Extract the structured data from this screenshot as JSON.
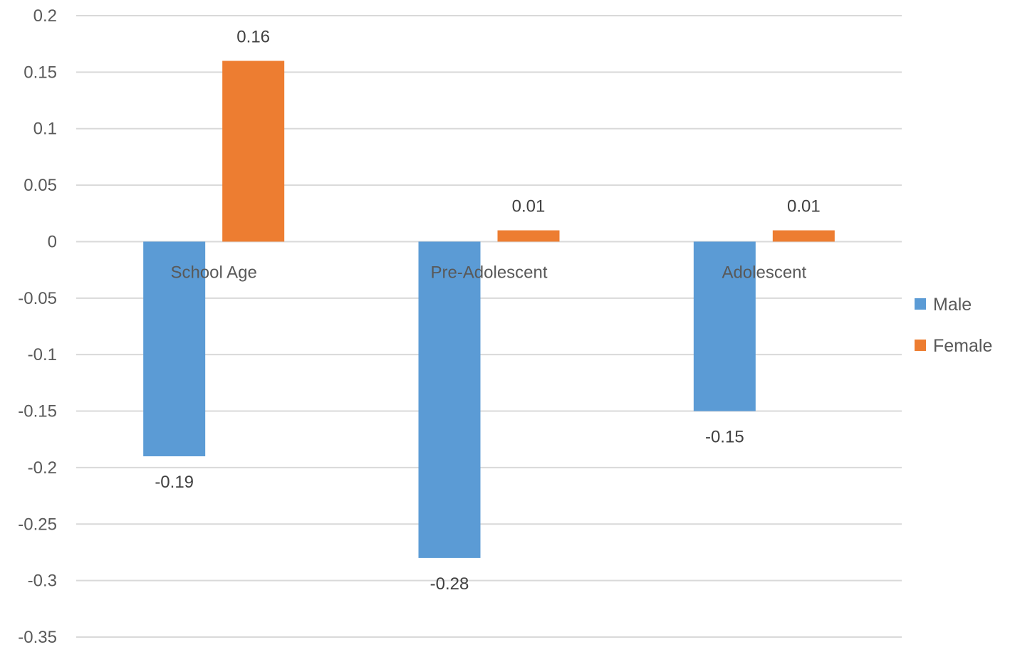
{
  "chart_data": {
    "type": "bar",
    "categories": [
      "School Age",
      "Pre-Adolescent",
      "Adolescent"
    ],
    "series": [
      {
        "name": "Male",
        "values": [
          -0.19,
          -0.28,
          -0.15
        ],
        "value_labels": [
          "-0.19",
          "-0.28",
          "-0.15"
        ],
        "color": "#5B9BD5"
      },
      {
        "name": "Female",
        "values": [
          0.16,
          0.01,
          0.01
        ],
        "value_labels": [
          "0.16",
          "0.01",
          "0.01"
        ],
        "color": "#ED7D31"
      }
    ],
    "ylim": [
      -0.35,
      0.2
    ],
    "y_ticks": [
      "0.2",
      "0.15",
      "0.1",
      "0.05",
      "0",
      "-0.05",
      "-0.1",
      "-0.15",
      "-0.2",
      "-0.25",
      "-0.3",
      "-0.35"
    ],
    "title": "",
    "xlabel": "",
    "ylabel": "",
    "grid": true,
    "legend_position": "right",
    "gridline_color": "#D9D9D9"
  }
}
